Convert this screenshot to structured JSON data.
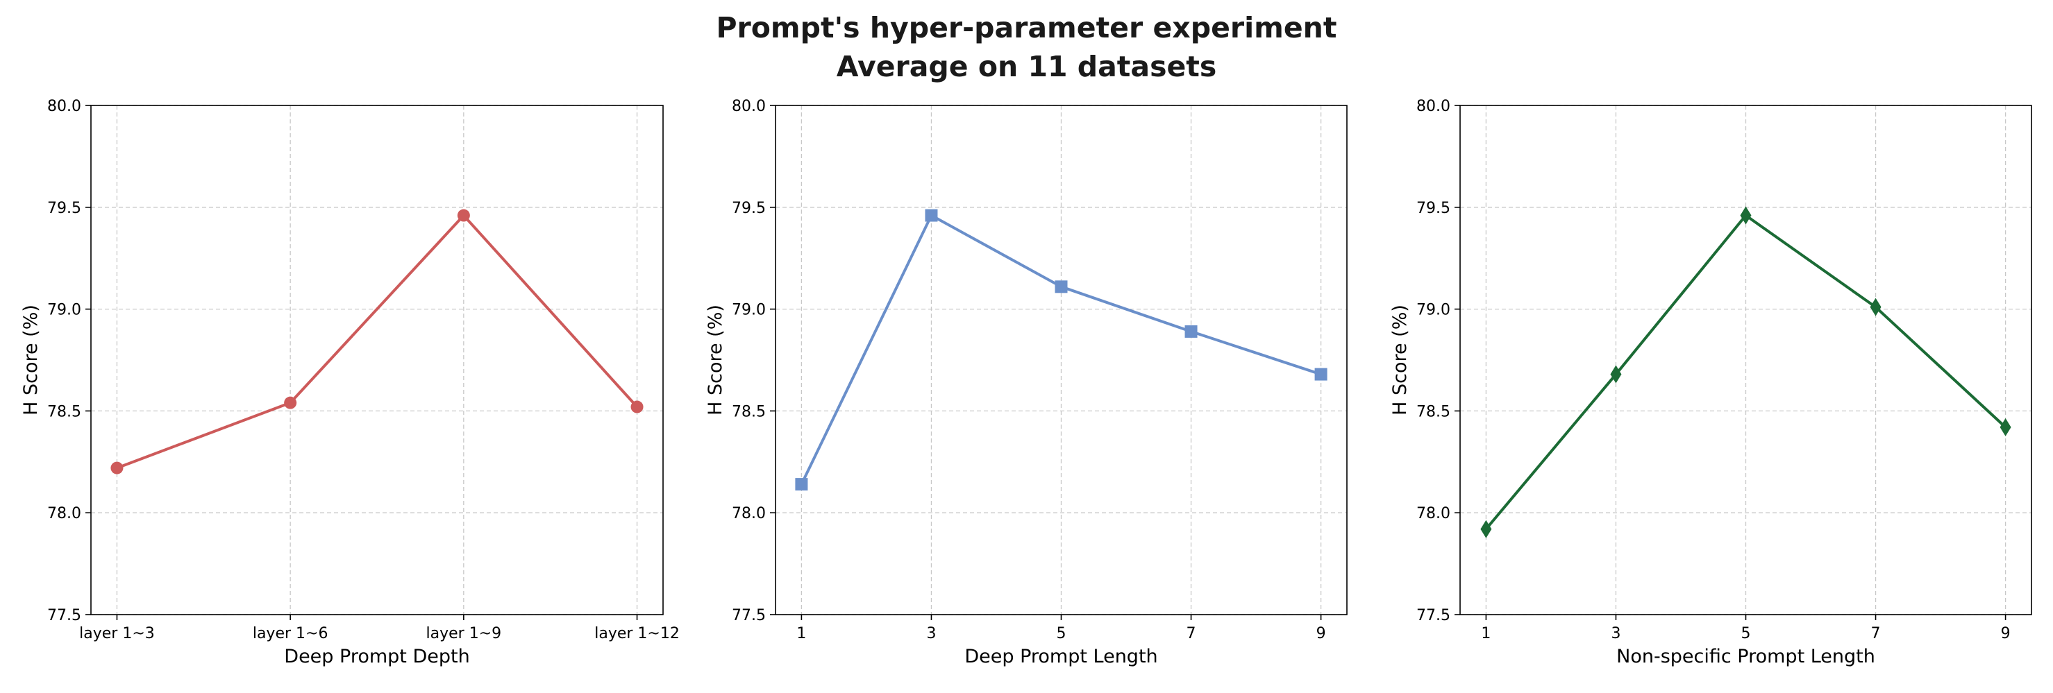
{
  "figure": {
    "title_line1": "Prompt's hyper-parameter experiment",
    "title_line2": "Average on 11 datasets"
  },
  "chart_data": [
    {
      "type": "line",
      "categories": [
        "layer 1~3",
        "layer 1~6",
        "layer 1~9",
        "layer 1~12"
      ],
      "series": [
        {
          "values": [
            78.22,
            78.54,
            79.46,
            78.52
          ],
          "color": "#cd5a5a",
          "marker": "circle"
        }
      ],
      "xlabel": "Deep Prompt Depth",
      "ylabel": "H Score (%)",
      "ylim": [
        77.5,
        80.0
      ],
      "yticks": [
        "77.5",
        "78.0",
        "78.5",
        "79.0",
        "79.5",
        "80.0"
      ],
      "grid": true
    },
    {
      "type": "line",
      "categories": [
        "1",
        "3",
        "5",
        "7",
        "9"
      ],
      "series": [
        {
          "values": [
            78.14,
            79.46,
            79.11,
            78.89,
            78.68
          ],
          "color": "#6a8fca",
          "marker": "square"
        }
      ],
      "xlabel": "Deep Prompt Length",
      "ylabel": "H Score (%)",
      "ylim": [
        77.5,
        80.0
      ],
      "yticks": [
        "77.5",
        "78.0",
        "78.5",
        "79.0",
        "79.5",
        "80.0"
      ],
      "grid": true
    },
    {
      "type": "line",
      "categories": [
        "1",
        "3",
        "5",
        "7",
        "9"
      ],
      "series": [
        {
          "values": [
            77.92,
            78.68,
            79.46,
            79.01,
            78.42
          ],
          "color": "#1b6b35",
          "marker": "diamond"
        }
      ],
      "xlabel": "Non-specific Prompt Length",
      "ylabel": "H Score (%)",
      "ylim": [
        77.5,
        80.0
      ],
      "yticks": [
        "77.5",
        "78.0",
        "78.5",
        "79.0",
        "79.5",
        "80.0"
      ],
      "grid": true
    }
  ]
}
